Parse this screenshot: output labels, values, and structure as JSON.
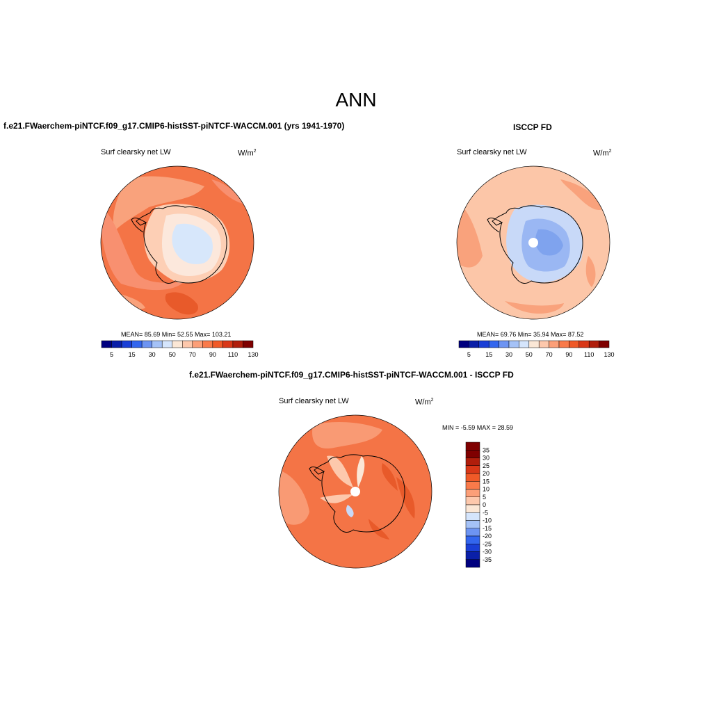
{
  "season": "ANN",
  "units_base": "W/m",
  "units_exp": "2",
  "panels": [
    {
      "title": "f.e21.FWaerchem-piNTCF.f09_g17.CMIP6-histSST-piNTCF-WACCM.001 (yrs 1941-1970)",
      "variable": "Surf clearsky net LW",
      "stats": "MEAN=  85.69  Min=  52.55  Max= 103.21"
    },
    {
      "title": "ISCCP FD",
      "variable": "Surf clearsky net LW",
      "stats": "MEAN=  69.76  Min=  35.94  Max=  87.52"
    },
    {
      "title": "f.e21.FWaerchem-piNTCF.f09_g17.CMIP6-histSST-piNTCF-WACCM.001 - ISCCP FD",
      "variable": "Surf clearsky net LW",
      "stats": "MIN =  -5.59 MAX =  28.59"
    }
  ],
  "colorbar_top": {
    "labels": [
      "5",
      "15",
      "30",
      "50",
      "70",
      "90",
      "110",
      "130"
    ],
    "colors": [
      "#00007f",
      "#0a1fa8",
      "#1a3fd6",
      "#3366ee",
      "#6d94f2",
      "#a5c2f7",
      "#d5e5fc",
      "#fbe7d6",
      "#fdc8ac",
      "#fc9f78",
      "#f97a4a",
      "#f05a28",
      "#d93818",
      "#b01e0c",
      "#7f0000"
    ]
  },
  "colorbar_diff": {
    "labels": [
      "35",
      "30",
      "25",
      "20",
      "15",
      "10",
      "5",
      "0",
      "-5",
      "-10",
      "-15",
      "-20",
      "-25",
      "-30",
      "-35"
    ],
    "colors": [
      "#7f0000",
      "#b01e0c",
      "#d93818",
      "#f05a28",
      "#f97a4a",
      "#fc9f78",
      "#fdc8ac",
      "#fbe7d6",
      "#d5e5fc",
      "#a5c2f7",
      "#6d94f2",
      "#3366ee",
      "#1a3fd6",
      "#0a1fa8",
      "#00007f"
    ]
  }
}
